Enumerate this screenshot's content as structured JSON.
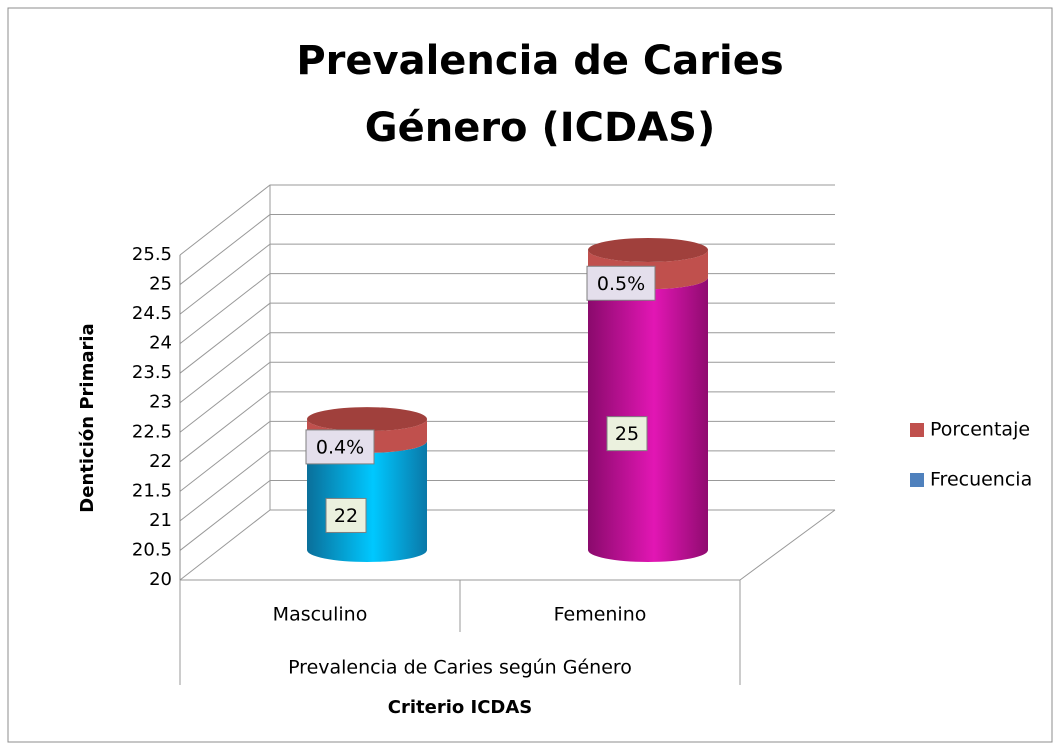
{
  "chart_data": {
    "type": "bar3d-cylinder-stacked",
    "title": [
      "Prevalencia de Caries",
      "Género (ICDAS)"
    ],
    "y_label": "Dentición Primaria",
    "x_group_label": "Prevalencia de Caries según Género",
    "x_label": "Criterio ICDAS",
    "categories": [
      "Masculino",
      "Femenino"
    ],
    "series": [
      {
        "name": "Frecuencia",
        "color": "#4f81bd",
        "point_colors": [
          "#00b0f0",
          "#d40fa8"
        ],
        "values": [
          22,
          25
        ]
      },
      {
        "name": "Porcentaje",
        "color": "#c0504d",
        "values": [
          0.4,
          0.5
        ],
        "value_labels": [
          "0.4%",
          "0.5%"
        ]
      }
    ],
    "ylim": [
      20,
      25.5
    ],
    "yticks": [
      20,
      20.5,
      21,
      21.5,
      22,
      22.5,
      23,
      23.5,
      24,
      24.5,
      25,
      25.5
    ],
    "grid": true,
    "legend": "right"
  }
}
